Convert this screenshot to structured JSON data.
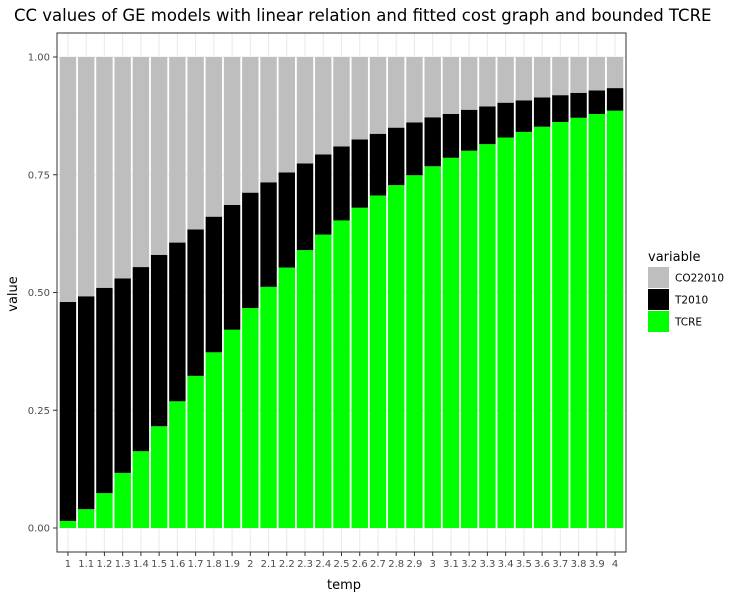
{
  "chart_data": {
    "type": "bar",
    "stacked": true,
    "title": "CC values of GE models with linear relation and fitted cost graph and bounded TCRE",
    "xlabel": "temp",
    "ylabel": "value",
    "ylim": [
      0,
      1.0
    ],
    "yticks": [
      0.0,
      0.25,
      0.5,
      0.75,
      1.0
    ],
    "ytick_labels": [
      "0.00",
      "0.25",
      "0.50",
      "0.75",
      "1.00"
    ],
    "grid": true,
    "legend": {
      "title": "variable",
      "placement": "right"
    },
    "categories": [
      "1",
      "1.1",
      "1.2",
      "1.3",
      "1.4",
      "1.5",
      "1.6",
      "1.7",
      "1.8",
      "1.9",
      "2",
      "2.1",
      "2.2",
      "2.3",
      "2.4",
      "2.5",
      "2.6",
      "2.7",
      "2.8",
      "2.9",
      "3",
      "3.1",
      "3.2",
      "3.3",
      "3.4",
      "3.5",
      "3.6",
      "3.7",
      "3.8",
      "3.9",
      "4"
    ],
    "series": [
      {
        "name": "TCRE",
        "color": "#00ff00",
        "values": [
          0.015,
          0.04,
          0.074,
          0.117,
          0.163,
          0.216,
          0.269,
          0.323,
          0.373,
          0.421,
          0.467,
          0.512,
          0.553,
          0.59,
          0.623,
          0.653,
          0.68,
          0.706,
          0.728,
          0.749,
          0.768,
          0.786,
          0.801,
          0.815,
          0.829,
          0.841,
          0.852,
          0.862,
          0.871,
          0.879,
          0.886
        ]
      },
      {
        "name": "T2010",
        "color": "#000000",
        "values": [
          0.465,
          0.452,
          0.436,
          0.413,
          0.391,
          0.364,
          0.337,
          0.311,
          0.288,
          0.265,
          0.245,
          0.222,
          0.202,
          0.184,
          0.17,
          0.157,
          0.145,
          0.131,
          0.122,
          0.112,
          0.104,
          0.093,
          0.087,
          0.08,
          0.074,
          0.067,
          0.062,
          0.057,
          0.053,
          0.05,
          0.048
        ]
      },
      {
        "name": "CO22010",
        "color": "#bebebe",
        "values": [
          0.52,
          0.508,
          0.49,
          0.47,
          0.446,
          0.42,
          0.394,
          0.366,
          0.339,
          0.314,
          0.288,
          0.266,
          0.245,
          0.226,
          0.207,
          0.19,
          0.175,
          0.163,
          0.15,
          0.139,
          0.128,
          0.121,
          0.112,
          0.105,
          0.097,
          0.092,
          0.086,
          0.081,
          0.076,
          0.071,
          0.066
        ]
      }
    ]
  }
}
